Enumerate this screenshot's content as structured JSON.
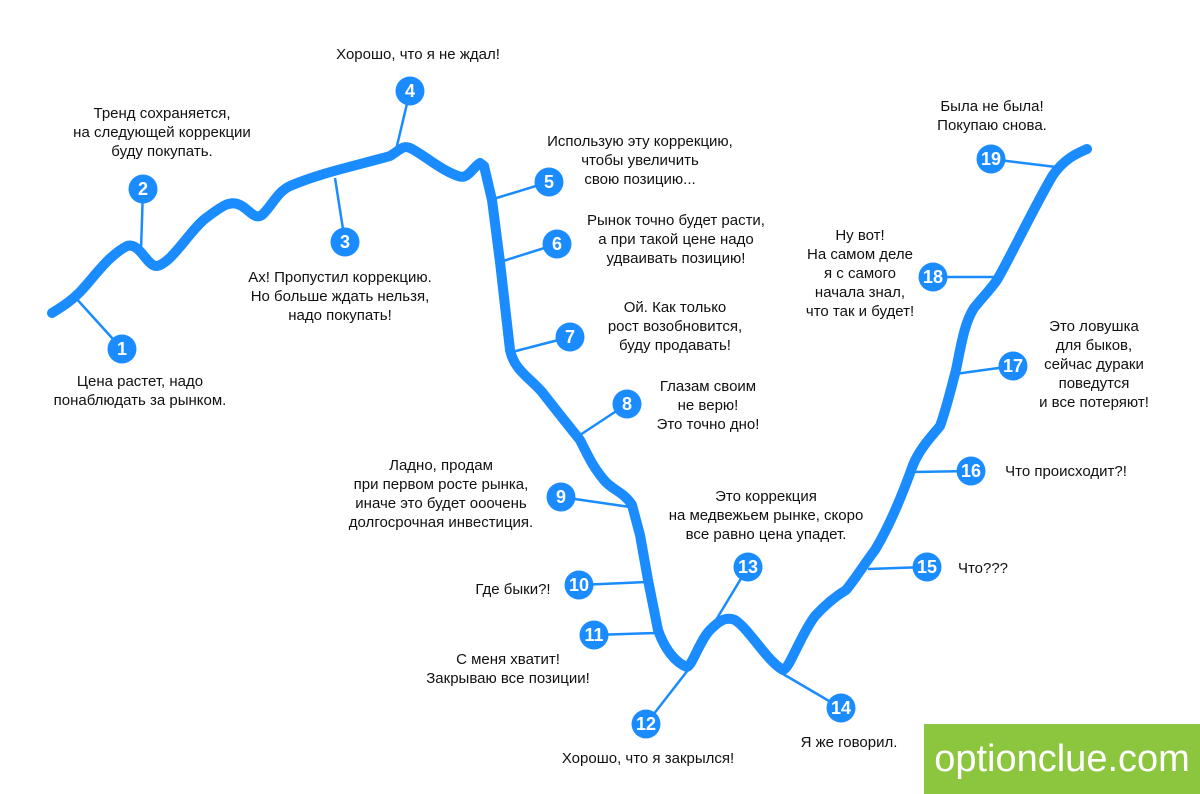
{
  "colors": {
    "curve": "#1a8cff",
    "badge": "#1a8cff",
    "leader": "#1a8cff",
    "watermark_bg": "#8cc63f"
  },
  "steps": [
    {
      "number": "1",
      "lines": [
        "Цена растет, надо",
        "понаблюдать за рынком."
      ]
    },
    {
      "number": "2",
      "lines": [
        "Тренд сохраняется,",
        "на следующей коррекции",
        "буду покупать."
      ]
    },
    {
      "number": "3",
      "lines": [
        "Ах! Пропустил коррекцию.",
        "Но больше ждать нельзя,",
        "надо покупать!"
      ]
    },
    {
      "number": "4",
      "lines": [
        "Хорошо, что я не ждал!"
      ]
    },
    {
      "number": "5",
      "lines": [
        "Использую эту коррекцию,",
        "чтобы увеличить",
        "свою позицию..."
      ]
    },
    {
      "number": "6",
      "lines": [
        "Рынок точно будет расти,",
        "а при такой цене надо",
        "удваивать позицию!"
      ]
    },
    {
      "number": "7",
      "lines": [
        "Ой. Как только",
        "рост возобновится,",
        "буду продавать!"
      ]
    },
    {
      "number": "8",
      "lines": [
        "Глазам своим",
        "не верю!",
        "Это точно дно!"
      ]
    },
    {
      "number": "9",
      "lines": [
        "Ладно, продам",
        "при первом росте рынка,",
        "иначе это будет ооочень",
        "долгосрочная инвестиция."
      ]
    },
    {
      "number": "10",
      "lines": [
        "Где быки?!"
      ]
    },
    {
      "number": "11",
      "lines": [
        "С меня хватит!",
        "Закрываю все позиции!"
      ]
    },
    {
      "number": "12",
      "lines": [
        "Хорошо, что я закрылся!"
      ]
    },
    {
      "number": "13",
      "lines": [
        "Это коррекция",
        "на медвежьем рынке, скоро",
        "все равно цена упадет."
      ]
    },
    {
      "number": "14",
      "lines": [
        "Я же говорил."
      ]
    },
    {
      "number": "15",
      "lines": [
        "Что???"
      ]
    },
    {
      "number": "16",
      "lines": [
        "Что происходит?!"
      ]
    },
    {
      "number": "17",
      "lines": [
        "Это ловушка",
        "для быков,",
        "сейчас дураки",
        "поведутся",
        "и все потеряют!"
      ]
    },
    {
      "number": "18",
      "lines": [
        "Ну вот!",
        "На самом деле",
        "я с самого",
        "начала знал,",
        "что так и будет!"
      ]
    },
    {
      "number": "19",
      "lines": [
        "Была не была!",
        "Покупаю снова."
      ]
    }
  ],
  "watermark": "optionclue.com"
}
